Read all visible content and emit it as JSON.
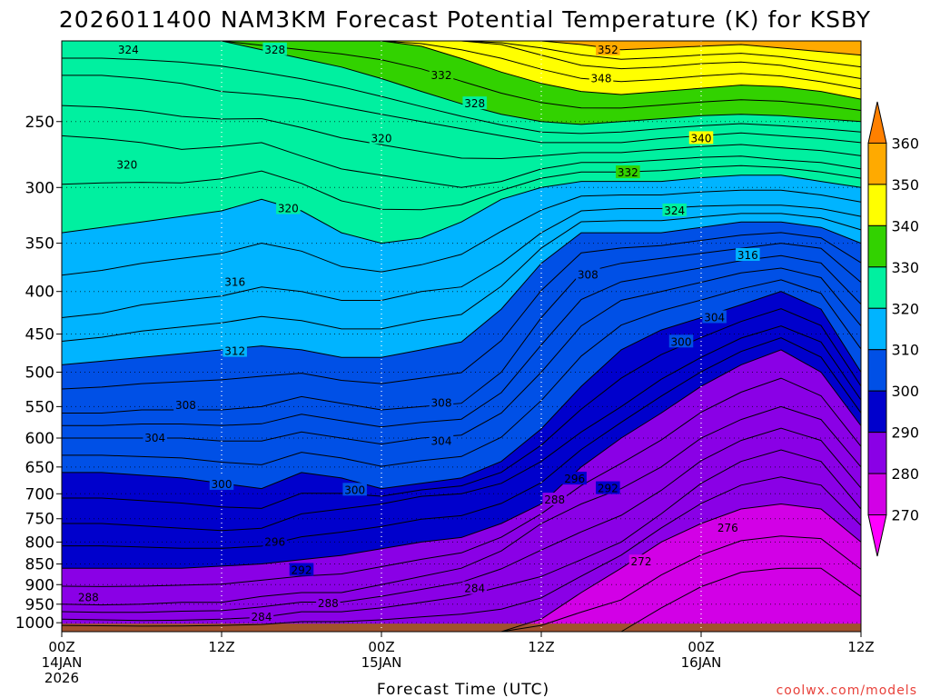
{
  "chart_data": {
    "type": "heatmap",
    "title": "2026011400 NAM3KM Forecast Potential Temperature (K) for KSBY",
    "xlabel": "Forecast Time (UTC)",
    "ylabel": "",
    "credit": "coolwx.com/models",
    "x_range_hours": [
      0,
      60
    ],
    "y_range_hPa": [
      200,
      1025
    ],
    "y_scale": "log",
    "grid": true,
    "y_ticks": [
      "250",
      "300",
      "350",
      "400",
      "450",
      "500",
      "550",
      "600",
      "650",
      "700",
      "750",
      "800",
      "850",
      "900",
      "950",
      "1000"
    ],
    "y_tick_values": [
      250,
      300,
      350,
      400,
      450,
      500,
      550,
      600,
      650,
      700,
      750,
      800,
      850,
      900,
      950,
      1000
    ],
    "x_ticks": [
      {
        "hour": 0,
        "lines": [
          "00Z",
          "14JAN",
          "2026"
        ]
      },
      {
        "hour": 12,
        "lines": [
          "12Z"
        ]
      },
      {
        "hour": 24,
        "lines": [
          "00Z",
          "15JAN"
        ]
      },
      {
        "hour": 36,
        "lines": [
          "12Z"
        ]
      },
      {
        "hour": 48,
        "lines": [
          "00Z",
          "16JAN"
        ]
      },
      {
        "hour": 60,
        "lines": [
          "12Z"
        ]
      }
    ],
    "colorbar": {
      "labels": [
        "360",
        "350",
        "340",
        "330",
        "320",
        "310",
        "300",
        "290",
        "280",
        "270"
      ],
      "bins": [
        {
          "lo": 260,
          "hi": 270,
          "color": "#ff00ff"
        },
        {
          "lo": 270,
          "hi": 280,
          "color": "#d200e6"
        },
        {
          "lo": 280,
          "hi": 290,
          "color": "#8a00e6"
        },
        {
          "lo": 290,
          "hi": 300,
          "color": "#0000cc"
        },
        {
          "lo": 300,
          "hi": 310,
          "color": "#0050e6"
        },
        {
          "lo": 310,
          "hi": 320,
          "color": "#00b4ff"
        },
        {
          "lo": 320,
          "hi": 330,
          "color": "#00f0a0"
        },
        {
          "lo": 330,
          "hi": 340,
          "color": "#32d200"
        },
        {
          "lo": 340,
          "hi": 350,
          "color": "#ffff00"
        },
        {
          "lo": 350,
          "hi": 360,
          "color": "#ffaa00"
        },
        {
          "lo": 360,
          "hi": 370,
          "color": "#ff8000"
        }
      ]
    },
    "ground_color": "#a0522d",
    "levels": [
      {
        "theta": 276,
        "p": [
          1025,
          1025,
          1025,
          1025,
          1025,
          1025,
          1025,
          1025,
          1025,
          1025,
          1025,
          1025,
          1025,
          1025,
          1025,
          960,
          905,
          870,
          860,
          860,
          930
        ]
      },
      {
        "theta": 280,
        "p": [
          1025,
          1025,
          1025,
          1025,
          1025,
          1025,
          1025,
          1025,
          1025,
          1025,
          1025,
          1025,
          990,
          920,
          860,
          800,
          760,
          730,
          720,
          730,
          800
        ]
      },
      {
        "theta": 284,
        "p": [
          990,
          992,
          994,
          993,
          990,
          985,
          970,
          970,
          960,
          945,
          930,
          905,
          880,
          840,
          800,
          740,
          680,
          640,
          620,
          640,
          730
        ]
      },
      {
        "theta": 288,
        "p": [
          950,
          952,
          950,
          945,
          945,
          930,
          920,
          920,
          900,
          880,
          860,
          820,
          760,
          720,
          690,
          650,
          600,
          570,
          550,
          570,
          650
        ]
      },
      {
        "theta": 292,
        "p": [
          860,
          860,
          860,
          860,
          855,
          850,
          840,
          830,
          815,
          800,
          790,
          760,
          720,
          650,
          600,
          560,
          520,
          490,
          470,
          500,
          580
        ]
      },
      {
        "theta": 296,
        "p": [
          760,
          760,
          765,
          770,
          775,
          770,
          740,
          730,
          720,
          705,
          700,
          680,
          640,
          590,
          550,
          510,
          480,
          455,
          440,
          460,
          540
        ]
      },
      {
        "theta": 300,
        "p": [
          660,
          660,
          665,
          670,
          680,
          690,
          660,
          670,
          690,
          680,
          670,
          640,
          585,
          520,
          470,
          445,
          430,
          415,
          400,
          420,
          500
        ]
      },
      {
        "theta": 304,
        "p": [
          600,
          600,
          600,
          600,
          605,
          605,
          590,
          600,
          610,
          600,
          595,
          560,
          500,
          440,
          410,
          400,
          390,
          380,
          375,
          385,
          440
        ]
      },
      {
        "theta": 308,
        "p": [
          560,
          560,
          555,
          555,
          555,
          550,
          535,
          545,
          555,
          550,
          545,
          500,
          430,
          380,
          370,
          365,
          360,
          355,
          350,
          355,
          390
        ]
      },
      {
        "theta": 312,
        "p": [
          490,
          485,
          480,
          475,
          470,
          465,
          470,
          480,
          480,
          470,
          460,
          420,
          370,
          340,
          340,
          340,
          335,
          330,
          330,
          335,
          350
        ]
      },
      {
        "theta": 316,
        "p": [
          430,
          425,
          415,
          410,
          405,
          395,
          400,
          410,
          410,
          400,
          395,
          370,
          340,
          320,
          318,
          318,
          316,
          315,
          315,
          318,
          325
        ]
      },
      {
        "theta": 320,
        "p": [
          340,
          335,
          330,
          325,
          320,
          310,
          320,
          340,
          350,
          345,
          330,
          310,
          300,
          295,
          295,
          295,
          292,
          290,
          290,
          295,
          300
        ]
      },
      {
        "theta": 324,
        "p": [
          260,
          262,
          265,
          270,
          268,
          265,
          275,
          285,
          290,
          295,
          300,
          295,
          285,
          280,
          280,
          278,
          276,
          275,
          278,
          280,
          285
        ]
      },
      {
        "theta": 328,
        "p": [
          220,
          220,
          222,
          225,
          230,
          232,
          235,
          240,
          245,
          250,
          255,
          260,
          265,
          265,
          265,
          262,
          260,
          258,
          260,
          262,
          265
        ]
      },
      {
        "theta": 332,
        "p": [
          200,
          200,
          200,
          200,
          200,
          205,
          210,
          215,
          222,
          230,
          238,
          245,
          250,
          252,
          250,
          248,
          246,
          245,
          246,
          248,
          250
        ]
      },
      {
        "theta": 340,
        "p": [
          200,
          200,
          200,
          200,
          200,
          200,
          200,
          200,
          200,
          203,
          210,
          218,
          225,
          230,
          232,
          230,
          228,
          226,
          227,
          230,
          235
        ]
      },
      {
        "theta": 348,
        "p": [
          200,
          200,
          200,
          200,
          200,
          200,
          200,
          200,
          200,
          200,
          200,
          202,
          208,
          214,
          216,
          215,
          213,
          212,
          214,
          218,
          222
        ]
      },
      {
        "theta": 356,
        "p": [
          200,
          200,
          200,
          200,
          200,
          200,
          200,
          200,
          200,
          200,
          200,
          200,
          200,
          202,
          205,
          204,
          203,
          202,
          204,
          206,
          208
        ]
      }
    ],
    "contour_labels": [
      {
        "text": "324",
        "hour": 5.0,
        "p": 205
      },
      {
        "text": "328",
        "hour": 16.0,
        "p": 205
      },
      {
        "text": "332",
        "hour": 28.5,
        "p": 220
      },
      {
        "text": "352",
        "hour": 41.0,
        "p": 205
      },
      {
        "text": "348",
        "hour": 40.5,
        "p": 222
      },
      {
        "text": "328",
        "hour": 31.0,
        "p": 238
      },
      {
        "text": "320",
        "hour": 4.9,
        "p": 282
      },
      {
        "text": "320",
        "hour": 24.0,
        "p": 262
      },
      {
        "text": "340",
        "hour": 48.0,
        "p": 262
      },
      {
        "text": "332",
        "hour": 42.5,
        "p": 288
      },
      {
        "text": "320",
        "hour": 17.0,
        "p": 318
      },
      {
        "text": "324",
        "hour": 46.0,
        "p": 320
      },
      {
        "text": "316",
        "hour": 51.5,
        "p": 362
      },
      {
        "text": "316",
        "hour": 13.0,
        "p": 390
      },
      {
        "text": "308",
        "hour": 39.5,
        "p": 382
      },
      {
        "text": "304",
        "hour": 49.0,
        "p": 430
      },
      {
        "text": "312",
        "hour": 13.0,
        "p": 472
      },
      {
        "text": "300",
        "hour": 46.5,
        "p": 460
      },
      {
        "text": "308",
        "hour": 9.3,
        "p": 548
      },
      {
        "text": "308",
        "hour": 28.5,
        "p": 545
      },
      {
        "text": "304",
        "hour": 7.0,
        "p": 600
      },
      {
        "text": "304",
        "hour": 28.5,
        "p": 605
      },
      {
        "text": "296",
        "hour": 38.5,
        "p": 672
      },
      {
        "text": "300",
        "hour": 12.0,
        "p": 682
      },
      {
        "text": "300",
        "hour": 22.0,
        "p": 693
      },
      {
        "text": "292",
        "hour": 41.0,
        "p": 690
      },
      {
        "text": "288",
        "hour": 37.0,
        "p": 712
      },
      {
        "text": "276",
        "hour": 50.0,
        "p": 770
      },
      {
        "text": "296",
        "hour": 16.0,
        "p": 800
      },
      {
        "text": "272",
        "hour": 43.5,
        "p": 845
      },
      {
        "text": "292",
        "hour": 18.0,
        "p": 865
      },
      {
        "text": "284",
        "hour": 31.0,
        "p": 910
      },
      {
        "text": "288",
        "hour": 2.0,
        "p": 933
      },
      {
        "text": "288",
        "hour": 20.0,
        "p": 948
      },
      {
        "text": "284",
        "hour": 15.0,
        "p": 985
      }
    ]
  }
}
